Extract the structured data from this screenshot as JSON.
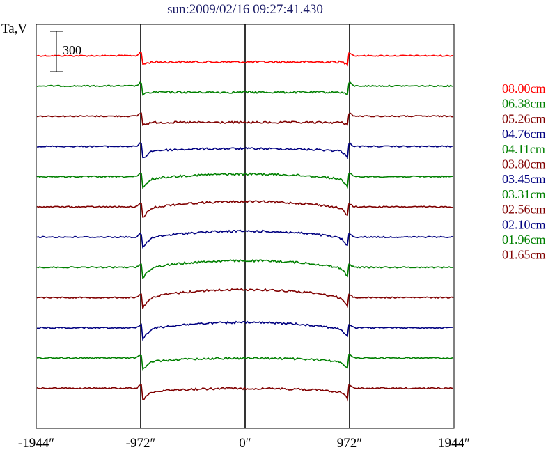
{
  "chart_data": {
    "type": "line",
    "title": "sun:2009/02/16 09:27:41.430",
    "ylabel": "Ta,V",
    "xlabel": "",
    "x_ticks": [
      "-1944″",
      "-972″",
      "0″",
      "972″",
      "1944″"
    ],
    "x_tick_values": [
      -1944,
      -972,
      0,
      972,
      1944
    ],
    "xlim": [
      -1944,
      1944
    ],
    "vlines": [
      -972,
      0,
      972
    ],
    "scale_bar": {
      "label": "300",
      "value": 300
    },
    "colors": {
      "red": "#ff0000",
      "green": "#008000",
      "darkred": "#800000",
      "blue": "#000080"
    },
    "series": [
      {
        "name": "08.00cm",
        "color": "#ff0000",
        "disk_rise": 0
      },
      {
        "name": "06.38cm",
        "color": "#008000",
        "disk_rise": 0
      },
      {
        "name": "05.26cm",
        "color": "#800000",
        "disk_rise": 0
      },
      {
        "name": "04.76cm",
        "color": "#000080",
        "disk_rise": 30
      },
      {
        "name": "04.11cm",
        "color": "#008000",
        "disk_rise": 65
      },
      {
        "name": "03.80cm",
        "color": "#800000",
        "disk_rise": 85
      },
      {
        "name": "03.45cm",
        "color": "#000080",
        "disk_rise": 90
      },
      {
        "name": "03.31cm",
        "color": "#008000",
        "disk_rise": 95
      },
      {
        "name": "02.56cm",
        "color": "#800000",
        "disk_rise": 105
      },
      {
        "name": "02.10cm",
        "color": "#000080",
        "disk_rise": 85
      },
      {
        "name": "01.96cm",
        "color": "#008000",
        "disk_rise": 45
      },
      {
        "name": "01.65cm",
        "color": "#800000",
        "disk_rise": 45
      }
    ]
  }
}
